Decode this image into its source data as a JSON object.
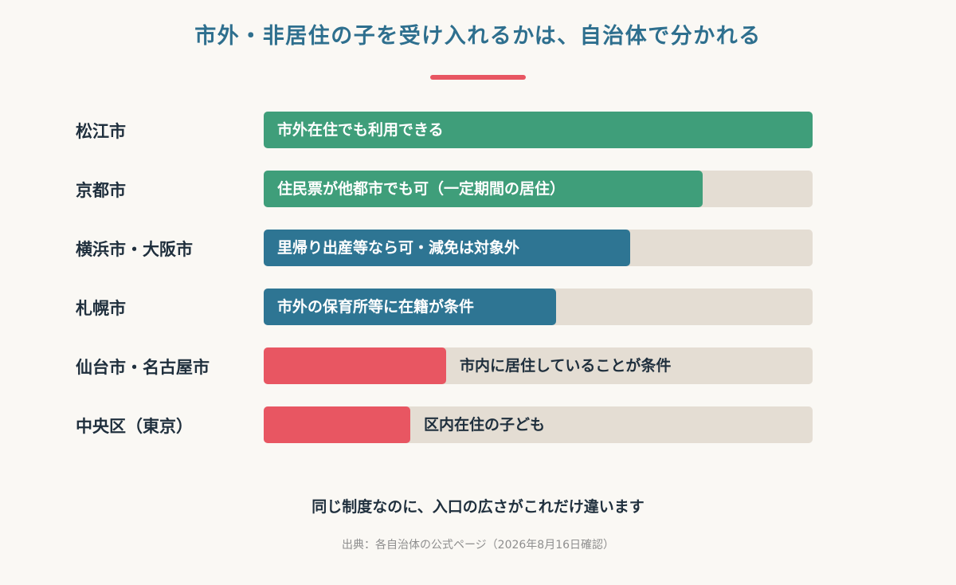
{
  "header": {
    "title": "市外・非居住の子を受け入れるかは、自治体で分かれる"
  },
  "colors": {
    "green": "#3f9e7a",
    "blue": "#2e7593",
    "red": "#e85662",
    "track": "#e4ddd3",
    "title": "#2e6f8e"
  },
  "chart_data": {
    "type": "bar",
    "orientation": "horizontal",
    "title": "市外・非居住の子を受け入れるかは、自治体で分かれる",
    "xlabel": "",
    "ylabel": "",
    "xlim": [
      0,
      1
    ],
    "grid": false,
    "categories": [
      "松江市",
      "京都市",
      "横浜市・大阪市",
      "札幌市",
      "仙台市・名古屋市",
      "中央区（東京）"
    ],
    "values": [
      1.0,
      0.8,
      0.667,
      0.533,
      0.333,
      0.267
    ],
    "bar_labels": [
      "市外在住でも利用できる",
      "住民票が他都市でも可（一定期間の居住）",
      "里帰り出産等なら可・減免は対象外",
      "市外の保育所等に在籍が条件",
      "市内に居住していることが条件",
      "区内在住の子ども"
    ],
    "bar_colors": [
      "#3f9e7a",
      "#3f9e7a",
      "#2e7593",
      "#2e7593",
      "#e85662",
      "#e85662"
    ],
    "label_inside": [
      true,
      true,
      true,
      true,
      false,
      false
    ]
  },
  "footer": {
    "summary": "同じ制度なのに、入口の広さがこれだけ違います",
    "source": "出典：各自治体の公式ページ（2026年8月16日確認）"
  }
}
